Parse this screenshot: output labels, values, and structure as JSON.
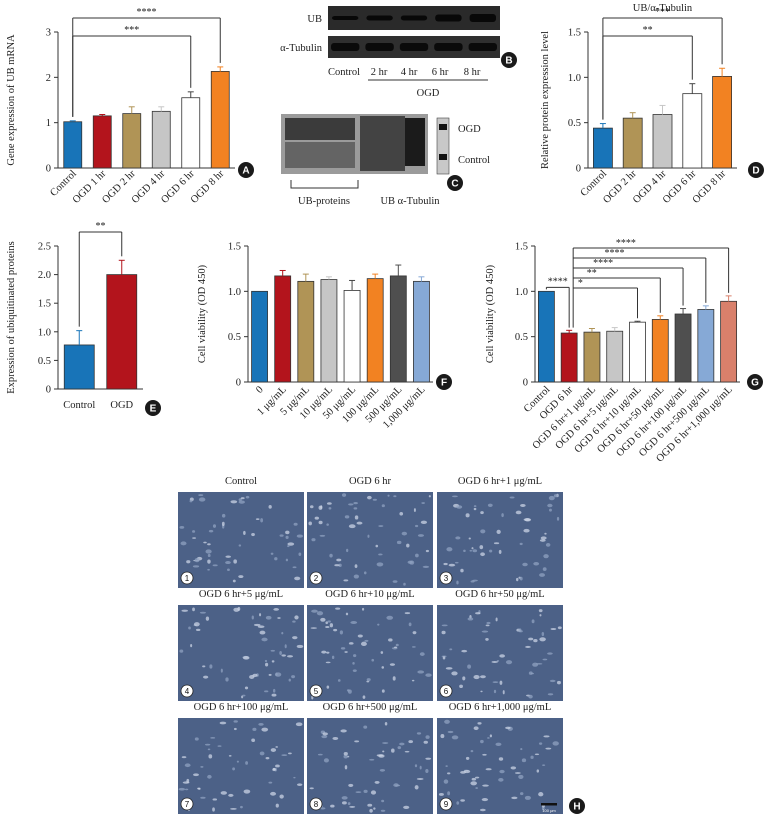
{
  "colors": {
    "blue": "#1874b8",
    "red": "#b3141c",
    "gold": "#b09456",
    "gray": "#c6c6c6",
    "white": "#ffffff",
    "orange": "#f28222",
    "dark": "#4f4f4f",
    "lightblue": "#86a9d6",
    "salmon": "#d9806b",
    "micro": "#4c6187"
  },
  "chart_data": [
    {
      "panel": "A",
      "type": "bar",
      "ylabel": "Gene expression of UB mRNA",
      "ylim": [
        0,
        3
      ],
      "yticks": [
        "0",
        "1",
        "2",
        "3"
      ],
      "categories": [
        "Control",
        "OGD 1 hr",
        "OGD 2 hr",
        "OGD 4 hr",
        "OGD 6 hr",
        "OGD 8 hr"
      ],
      "values": [
        1.02,
        1.15,
        1.2,
        1.25,
        1.55,
        2.13
      ],
      "errors": [
        0.02,
        0.03,
        0.15,
        0.1,
        0.13,
        0.1
      ],
      "bar_colors": [
        "blue",
        "red",
        "gold",
        "gray",
        "white",
        "orange"
      ],
      "significance": [
        {
          "from": 0,
          "to": 5,
          "label": "****"
        },
        {
          "from": 0,
          "to": 4,
          "label": "***"
        }
      ]
    },
    {
      "panel": "B",
      "type": "blot",
      "rows": [
        "UB",
        "α-Tubulin"
      ],
      "lanes": [
        "Control",
        "2 hr",
        "4 hr",
        "6 hr",
        "8 hr"
      ],
      "group_label": "OGD"
    },
    {
      "panel": "C",
      "type": "blot",
      "labels": [
        "OGD",
        "Control"
      ],
      "bottom_labels": [
        "UB-proteins",
        "UB α-Tubulin"
      ]
    },
    {
      "panel": "D",
      "type": "bar",
      "title": "UB/α-Tubulin",
      "ylabel": "Relative protein expression level",
      "ylim": [
        0,
        1.5
      ],
      "yticks": [
        "0",
        "0.5",
        "1.0",
        "1.5"
      ],
      "categories": [
        "Control",
        "OGD 2 hr",
        "OGD 4 hr",
        "OGD 6 hr",
        "OGD 8 hr"
      ],
      "values": [
        0.44,
        0.55,
        0.59,
        0.82,
        1.01
      ],
      "errors": [
        0.05,
        0.06,
        0.1,
        0.11,
        0.09
      ],
      "bar_colors": [
        "blue",
        "gold",
        "gray",
        "white",
        "orange"
      ],
      "significance": [
        {
          "from": 0,
          "to": 4,
          "label": "***"
        },
        {
          "from": 0,
          "to": 3,
          "label": "**"
        }
      ]
    },
    {
      "panel": "E",
      "type": "bar",
      "ylabel": "Expression of ubiquitinated proteins",
      "ylim": [
        0,
        2.5
      ],
      "yticks": [
        "0",
        "0.5",
        "1.0",
        "1.5",
        "2.0",
        "2.5"
      ],
      "categories": [
        "Control",
        "OGD"
      ],
      "values": [
        0.77,
        2.0
      ],
      "errors": [
        0.25,
        0.25
      ],
      "bar_colors": [
        "blue",
        "red"
      ],
      "significance": [
        {
          "from": 0,
          "to": 1,
          "label": "**"
        }
      ]
    },
    {
      "panel": "F",
      "type": "bar",
      "ylabel": "Cell viability (OD 450)",
      "ylim": [
        0,
        1.5
      ],
      "yticks": [
        "0",
        "0.5",
        "1.0",
        "1.5"
      ],
      "categories": [
        "0",
        "1 μg/mL",
        "5 μg/mL",
        "10 μg/mL",
        "50 μg/mL",
        "100 μg/mL",
        "500 μg/mL",
        "1,000 μg/mL"
      ],
      "values": [
        1.0,
        1.17,
        1.11,
        1.13,
        1.01,
        1.14,
        1.17,
        1.11
      ],
      "errors": [
        0.0,
        0.06,
        0.08,
        0.03,
        0.11,
        0.05,
        0.12,
        0.05
      ],
      "bar_colors": [
        "blue",
        "red",
        "gold",
        "gray",
        "white",
        "orange",
        "dark",
        "lightblue"
      ],
      "significance": []
    },
    {
      "panel": "G",
      "type": "bar",
      "ylabel": "Cell viability (OD 450)",
      "ylim": [
        0,
        1.5
      ],
      "yticks": [
        "0",
        "0.5",
        "1.0",
        "1.5"
      ],
      "categories": [
        "Control",
        "OGD 6 hr",
        "OGD 6 hr+1 μg/mL",
        "OGD 6 hr+5 μg/mL",
        "OGD 6 hr+10 μg/mL",
        "OGD 6 hr+50 μg/mL",
        "OGD 6 hr+100 μg/mL",
        "OGD 6 hr+500 μg/mL",
        "OGD 6 hr+1,000 μg/mL"
      ],
      "values": [
        1.0,
        0.54,
        0.55,
        0.56,
        0.66,
        0.69,
        0.75,
        0.8,
        0.89
      ],
      "errors": [
        0.0,
        0.03,
        0.04,
        0.04,
        0.01,
        0.04,
        0.06,
        0.04,
        0.06
      ],
      "bar_colors": [
        "blue",
        "red",
        "gold",
        "gray",
        "white",
        "orange",
        "dark",
        "lightblue",
        "salmon"
      ],
      "significance": [
        {
          "from": 1,
          "to": 8,
          "label": "****"
        },
        {
          "from": 1,
          "to": 7,
          "label": "****"
        },
        {
          "from": 1,
          "to": 6,
          "label": "****"
        },
        {
          "from": 1,
          "to": 5,
          "label": "**"
        },
        {
          "from": 1,
          "to": 4,
          "label": "*"
        },
        {
          "from": 0,
          "to": 1,
          "label": "****"
        }
      ]
    },
    {
      "panel": "H",
      "type": "image-grid",
      "images": [
        {
          "title": "Control",
          "num": "1"
        },
        {
          "title": "OGD 6 hr",
          "num": "2"
        },
        {
          "title": "OGD 6 hr+1 μg/mL",
          "num": "3"
        },
        {
          "title": "OGD 6 hr+5 μg/mL",
          "num": "4"
        },
        {
          "title": "OGD 6 hr+10 μg/mL",
          "num": "5"
        },
        {
          "title": "OGD 6 hr+50 μg/mL",
          "num": "6"
        },
        {
          "title": "OGD 6 hr+100 μg/mL",
          "num": "7"
        },
        {
          "title": "OGD 6 hr+500 μg/mL",
          "num": "8"
        },
        {
          "title": "OGD 6 hr+1,000 μg/mL",
          "num": "9"
        }
      ],
      "scale_bar_label": "100 μm"
    }
  ]
}
